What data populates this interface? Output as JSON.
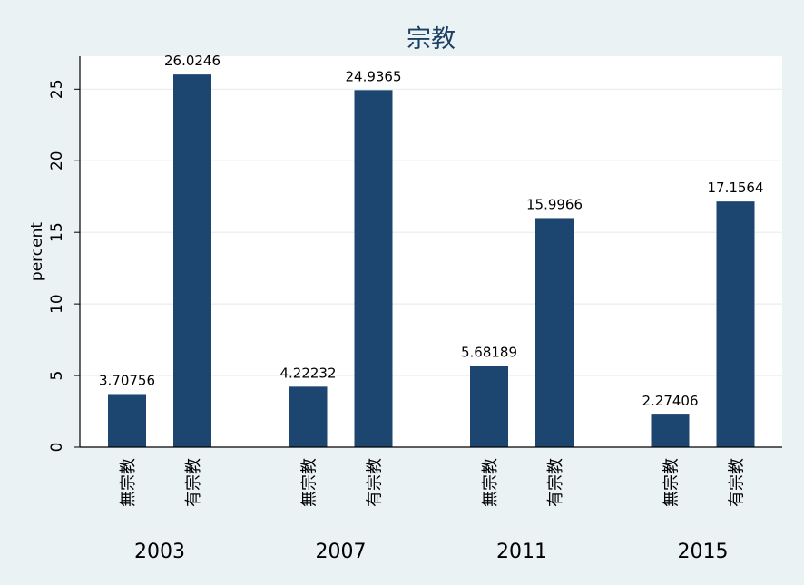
{
  "chart_data": {
    "type": "bar",
    "title": "宗教",
    "ylabel": "percent",
    "ylim": [
      0,
      27.3
    ],
    "yticks": [
      0,
      5,
      10,
      15,
      20,
      25
    ],
    "grid": true,
    "groups": [
      {
        "label": "2003",
        "bars": [
          {
            "category": "無宗教",
            "value": 3.70756,
            "value_label": "3.70756"
          },
          {
            "category": "有宗教",
            "value": 26.0246,
            "value_label": "26.0246"
          }
        ]
      },
      {
        "label": "2007",
        "bars": [
          {
            "category": "無宗教",
            "value": 4.22232,
            "value_label": "4.22232"
          },
          {
            "category": "有宗教",
            "value": 24.9365,
            "value_label": "24.9365"
          }
        ]
      },
      {
        "label": "2011",
        "bars": [
          {
            "category": "無宗教",
            "value": 5.68189,
            "value_label": "5.68189"
          },
          {
            "category": "有宗教",
            "value": 15.9966,
            "value_label": "15.9966"
          }
        ]
      },
      {
        "label": "2015",
        "bars": [
          {
            "category": "無宗教",
            "value": 2.27406,
            "value_label": "2.27406"
          },
          {
            "category": "有宗教",
            "value": 17.1564,
            "value_label": "17.1564"
          }
        ]
      }
    ],
    "colors": {
      "bar": "#1c466f",
      "background": "#eaf2f3",
      "plot_background": "#ffffff",
      "grid": "#e6eef0",
      "text": "#000000",
      "title": "#1c3f66"
    }
  }
}
